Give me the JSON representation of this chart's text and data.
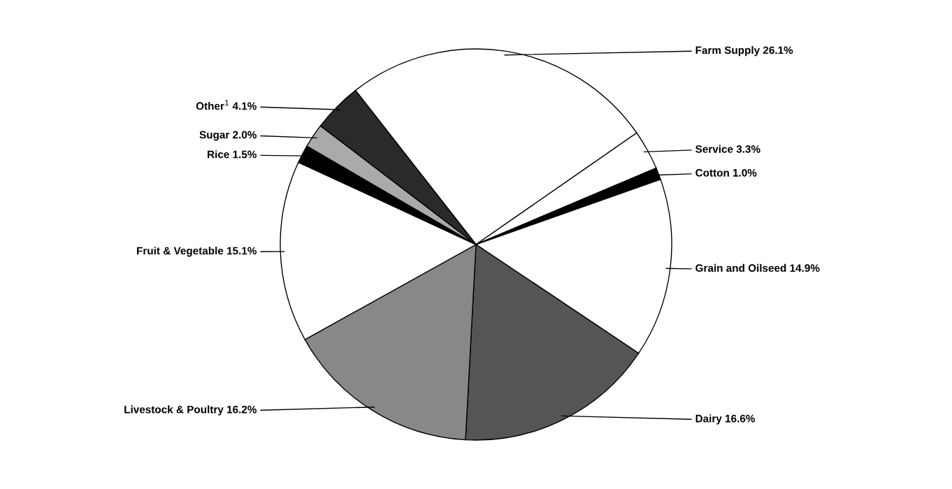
{
  "chart_data": {
    "type": "pie",
    "categories": [
      "Farm Supply 26.1%",
      "Service 3.3%",
      "Cotton 1.0%",
      "Grain and Oilseed 14.9%",
      "Dairy 16.6%",
      "Livestock & Poultry 16.2%",
      "Fruit & Vegetable 15.1%",
      "Rice 1.5%",
      "Sugar 2.0%",
      "Other$^{1}$ 4.1%"
    ],
    "values": [
      26.1,
      3.3,
      1.0,
      14.9,
      16.6,
      16.2,
      15.1,
      1.5,
      2.0,
      4.1
    ],
    "colors": [
      "#ffffff",
      "#ffffff",
      "#000000",
      "#ffffff",
      "#555555",
      "#888888",
      "#ffffff",
      "#000000",
      "#aaaaaa",
      "#2a2a2a"
    ],
    "legend": false
  }
}
